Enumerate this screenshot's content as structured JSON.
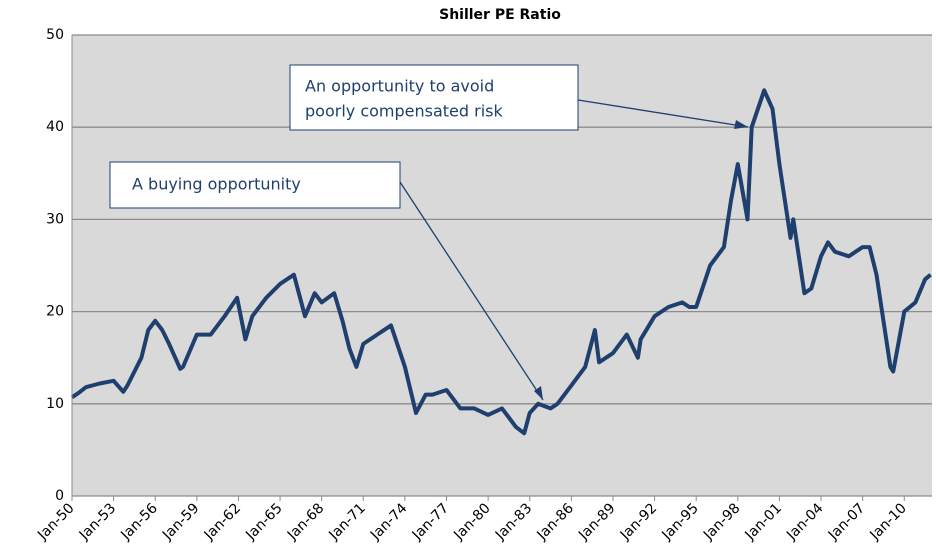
{
  "chart_data": {
    "type": "line",
    "title": "Shiller PE Ratio",
    "x": [
      1950,
      1950.5,
      1951,
      1952,
      1953,
      1953.7,
      1954,
      1955,
      1955.5,
      1956,
      1956.5,
      1957,
      1957.8,
      1958,
      1959,
      1960,
      1961,
      1961.9,
      1962.5,
      1963,
      1964,
      1965,
      1966,
      1966.8,
      1967.5,
      1968,
      1968.9,
      1969.5,
      1970,
      1970.5,
      1971,
      1972,
      1973,
      1974,
      1974.8,
      1975.5,
      1976,
      1977,
      1978,
      1979,
      1980,
      1981,
      1982,
      1982.6,
      1983,
      1983.6,
      1984.5,
      1985,
      1986,
      1987,
      1987.7,
      1988,
      1989,
      1990,
      1990.8,
      1991,
      1992,
      1993,
      1994,
      1994.5,
      1995,
      1996,
      1997,
      1997.5,
      1998,
      1998.7,
      1999,
      1999.9,
      2000.5,
      2001,
      2001.8,
      2002,
      2002.8,
      2003.3,
      2004,
      2004.5,
      2005,
      2006,
      2007,
      2007.5,
      2008,
      2009,
      2009.2,
      2010,
      2010.8,
      2011.5,
      2011.9
    ],
    "values": [
      10.7,
      11.2,
      11.8,
      12.2,
      12.5,
      11.3,
      12,
      15,
      18,
      19,
      18,
      16.5,
      13.8,
      14,
      17.5,
      17.5,
      19.5,
      21.5,
      17,
      19.5,
      21.5,
      23,
      24,
      19.5,
      22,
      21,
      22,
      19,
      16,
      14,
      16.5,
      17.5,
      18.5,
      14,
      9,
      11,
      11,
      11.5,
      9.5,
      9.5,
      8.8,
      9.5,
      7.5,
      6.8,
      9,
      10,
      9.5,
      10,
      12,
      14,
      18,
      14.5,
      15.5,
      17.5,
      15,
      17,
      19.5,
      20.5,
      21,
      20.5,
      20.5,
      25,
      27,
      32,
      36,
      30,
      40,
      44,
      42,
      36,
      28,
      30,
      22,
      22.5,
      26,
      27.5,
      26.5,
      26,
      27,
      27,
      24,
      14,
      13.5,
      20,
      21,
      23.5,
      24
    ],
    "color": "#1f3f6e",
    "xlim": [
      1950,
      2012
    ],
    "xticks": [
      {
        "value": 1950,
        "label": "Jan-50"
      },
      {
        "value": 1953,
        "label": "Jan-53"
      },
      {
        "value": 1956,
        "label": "Jan-56"
      },
      {
        "value": 1959,
        "label": "Jan-59"
      },
      {
        "value": 1962,
        "label": "Jan-62"
      },
      {
        "value": 1965,
        "label": "Jan-65"
      },
      {
        "value": 1968,
        "label": "Jan-68"
      },
      {
        "value": 1971,
        "label": "Jan-71"
      },
      {
        "value": 1974,
        "label": "Jan-74"
      },
      {
        "value": 1977,
        "label": "Jan-77"
      },
      {
        "value": 1980,
        "label": "Jan-80"
      },
      {
        "value": 1983,
        "label": "Jan-83"
      },
      {
        "value": 1986,
        "label": "Jan-86"
      },
      {
        "value": 1989,
        "label": "Jan-89"
      },
      {
        "value": 1992,
        "label": "Jan-92"
      },
      {
        "value": 1995,
        "label": "Jan-95"
      },
      {
        "value": 1998,
        "label": "Jan-98"
      },
      {
        "value": 2001,
        "label": "Jan-01"
      },
      {
        "value": 2004,
        "label": "Jan-04"
      },
      {
        "value": 2007,
        "label": "Jan-07"
      },
      {
        "value": 2010,
        "label": "Jan-10"
      }
    ],
    "ylim": [
      0,
      50
    ],
    "yticks": [
      0,
      10,
      20,
      30,
      40,
      50
    ],
    "grid": true,
    "annotations": [
      {
        "lines": [
          "An opportunity to avoid",
          "poorly compensated risk"
        ]
      },
      {
        "lines": [
          "A buying opportunity"
        ]
      }
    ]
  }
}
